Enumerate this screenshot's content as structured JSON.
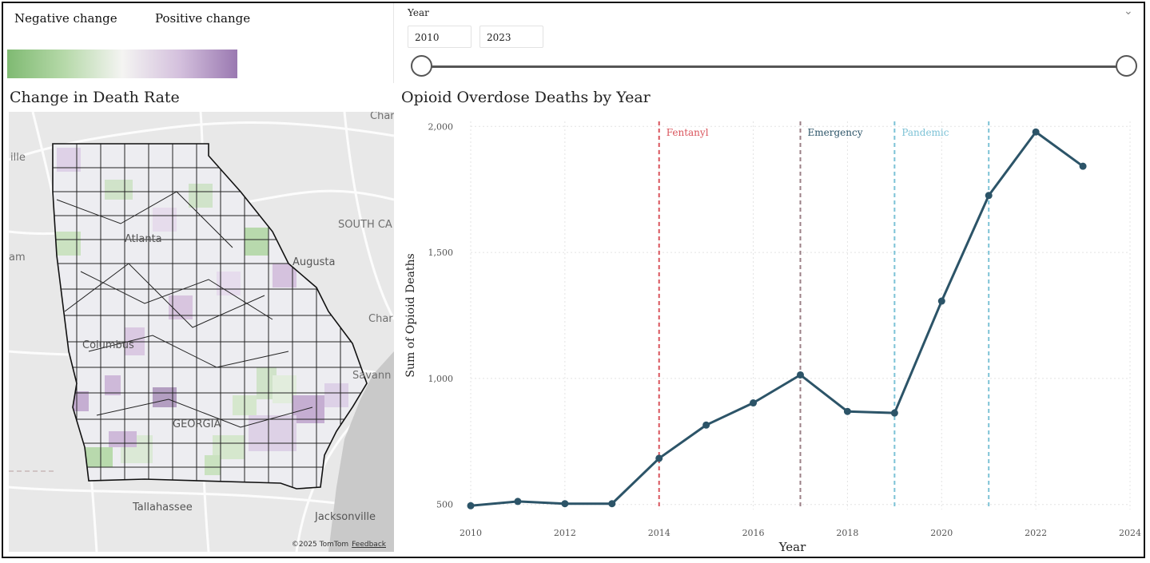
{
  "legend": {
    "negative_label": "Negative change",
    "positive_label": "Positive change",
    "colors": {
      "negative": "#7fba72",
      "neutral": "#f4f4f2",
      "positive": "#9a79b1"
    }
  },
  "year_filter": {
    "label": "Year",
    "start_value": "2010",
    "end_value": "2023"
  },
  "map": {
    "title": "Change in Death Rate",
    "labels": {
      "atlanta": "Atlanta",
      "augusta": "Augusta",
      "columbus": "Columbus",
      "georgia": "GEORGIA",
      "tallahassee": "Tallahassee",
      "jacksonville": "Jacksonville",
      "savannah": "Savann",
      "south_carolina": "SOUTH CA",
      "char_top": "Char",
      "char_right": "Char",
      "ille": "ille",
      "am": "am"
    },
    "attribution": "©2025 TomTom",
    "feedback": "Feedback"
  },
  "chart_data": {
    "type": "line",
    "title": "Opioid Overdose Deaths by Year",
    "xlabel": "Year",
    "ylabel": "Sum of Opioid Deaths",
    "x": [
      2010,
      2011,
      2012,
      2013,
      2014,
      2015,
      2016,
      2017,
      2018,
      2019,
      2020,
      2021,
      2022,
      2023
    ],
    "values": [
      495,
      512,
      503,
      503,
      683,
      815,
      903,
      1014,
      869,
      863,
      1307,
      1726,
      1978,
      1842
    ],
    "xlim": [
      2010,
      2024
    ],
    "ylim": [
      480,
      2020
    ],
    "xticks": [
      "2010",
      "2012",
      "2014",
      "2016",
      "2018",
      "2020",
      "2022",
      "2024"
    ],
    "yticks": [
      "500",
      "1,000",
      "1,500",
      "2,000"
    ],
    "line_color": "#2c5468",
    "annotations": [
      {
        "label": "Fentanyl",
        "x": 2014,
        "color": "#d9535b"
      },
      {
        "label": "Emergency",
        "x": 2017,
        "color": "#9b7f86",
        "text_color": "#2c5468"
      },
      {
        "label": "Pandemic",
        "x": 2019,
        "color": "#7cc2d6"
      },
      {
        "label": "",
        "x": 2021,
        "color": "#7cc2d6"
      }
    ]
  }
}
